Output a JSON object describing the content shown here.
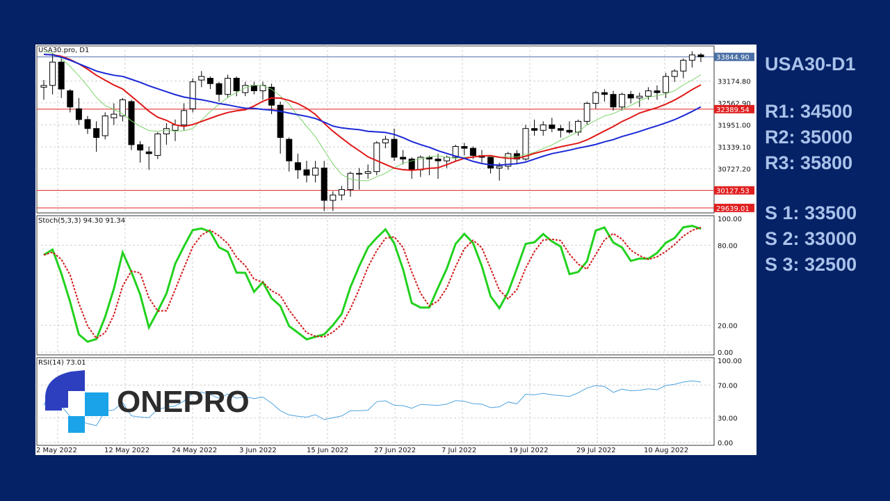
{
  "chart_data": {
    "type": "candlestick",
    "symbol_label": "USA30.pro, D1",
    "x_labels": [
      "2 May 2022",
      "12 May 2022",
      "24 May 2022",
      "3 Jun 2022",
      "15 Jun 2022",
      "27 Jun 2022",
      "7 Jul 2022",
      "19 Jul 2022",
      "29 Jul 2022",
      "10 Aug 2022"
    ],
    "price_panel": {
      "y_ticks": [
        "33174.80",
        "32562.90",
        "31951.00",
        "31339.10",
        "30727.20"
      ],
      "y_range": [
        29500,
        34150
      ],
      "horizontal_levels": [
        {
          "value": 33844.9,
          "label": "33844.90",
          "color": "#4a6fa5"
        },
        {
          "value": 32389.54,
          "label": "32389.54",
          "color": "#e02020"
        },
        {
          "value": 30127.53,
          "label": "30127.53",
          "color": "#e02020"
        },
        {
          "value": 29639.01,
          "label": "29639.01",
          "color": "#e02020"
        }
      ],
      "candles": [
        [
          33000,
          33200,
          32650,
          33050
        ],
        [
          33050,
          33950,
          32800,
          33700
        ],
        [
          33700,
          33850,
          32700,
          32950
        ],
        [
          32900,
          32950,
          32300,
          32450
        ],
        [
          32400,
          32700,
          31950,
          32100
        ],
        [
          32100,
          32200,
          31700,
          31850
        ],
        [
          31850,
          32050,
          31200,
          31600
        ],
        [
          31650,
          32300,
          31550,
          32200
        ],
        [
          32150,
          32550,
          31950,
          32250
        ],
        [
          32200,
          32700,
          32050,
          32650
        ],
        [
          32600,
          32650,
          31250,
          31400
        ],
        [
          31400,
          31500,
          30900,
          31250
        ],
        [
          31200,
          31350,
          30700,
          31150
        ],
        [
          31100,
          31750,
          31000,
          31700
        ],
        [
          31700,
          32000,
          31400,
          31850
        ],
        [
          31800,
          32100,
          31500,
          31950
        ],
        [
          31950,
          32550,
          31800,
          32350
        ],
        [
          32400,
          33250,
          32300,
          33150
        ],
        [
          33200,
          33450,
          33000,
          33300
        ],
        [
          33250,
          33300,
          32950,
          33100
        ],
        [
          33100,
          33150,
          32600,
          32800
        ],
        [
          32800,
          33350,
          32700,
          33250
        ],
        [
          33250,
          33300,
          32750,
          32900
        ],
        [
          32850,
          33150,
          32750,
          33050
        ],
        [
          33050,
          33150,
          32800,
          32900
        ],
        [
          32900,
          33150,
          32650,
          33050
        ],
        [
          33000,
          33100,
          32250,
          32500
        ],
        [
          32500,
          32600,
          31150,
          31600
        ],
        [
          31550,
          31600,
          30650,
          30950
        ],
        [
          30900,
          31150,
          30450,
          30700
        ],
        [
          30700,
          30950,
          30350,
          30550
        ],
        [
          30550,
          30950,
          30350,
          30750
        ],
        [
          30750,
          30950,
          29550,
          29850
        ],
        [
          29850,
          30100,
          29550,
          30000
        ],
        [
          30000,
          30250,
          29850,
          30150
        ],
        [
          30150,
          30650,
          29950,
          30600
        ],
        [
          30600,
          30750,
          30150,
          30600
        ],
        [
          30600,
          30850,
          30450,
          30650
        ],
        [
          30650,
          31500,
          30550,
          31450
        ],
        [
          31450,
          31650,
          31300,
          31550
        ],
        [
          31550,
          31850,
          30950,
          31050
        ],
        [
          31050,
          31250,
          30850,
          31000
        ],
        [
          31000,
          31050,
          30450,
          30700
        ],
        [
          30700,
          31100,
          30500,
          31050
        ],
        [
          31050,
          31100,
          30550,
          31000
        ],
        [
          31000,
          31150,
          30450,
          30950
        ],
        [
          30950,
          31100,
          30750,
          31050
        ],
        [
          31050,
          31400,
          30950,
          31350
        ],
        [
          31350,
          31450,
          31100,
          31300
        ],
        [
          31300,
          31350,
          31000,
          31100
        ],
        [
          31100,
          31250,
          30900,
          31050
        ],
        [
          31050,
          31100,
          30600,
          30750
        ],
        [
          30750,
          30900,
          30400,
          30800
        ],
        [
          30800,
          31200,
          30700,
          31150
        ],
        [
          31150,
          31250,
          30850,
          31000
        ],
        [
          31000,
          31950,
          30950,
          31850
        ],
        [
          31850,
          32100,
          31650,
          31800
        ],
        [
          31800,
          32050,
          31650,
          31950
        ],
        [
          31950,
          32150,
          31750,
          31850
        ],
        [
          31850,
          31950,
          31600,
          31800
        ],
        [
          31800,
          32050,
          31700,
          31750
        ],
        [
          31750,
          32100,
          31650,
          32050
        ],
        [
          32050,
          32600,
          31950,
          32550
        ],
        [
          32550,
          32900,
          32400,
          32850
        ],
        [
          32850,
          32950,
          32600,
          32800
        ],
        [
          32800,
          32900,
          32350,
          32450
        ],
        [
          32450,
          32850,
          32350,
          32800
        ],
        [
          32800,
          32900,
          32550,
          32700
        ],
        [
          32700,
          32850,
          32450,
          32750
        ],
        [
          32750,
          33000,
          32650,
          32900
        ],
        [
          32900,
          33050,
          32650,
          32850
        ],
        [
          32850,
          33400,
          32700,
          33300
        ],
        [
          33300,
          33500,
          33150,
          33450
        ],
        [
          33450,
          33800,
          33250,
          33750
        ],
        [
          33750,
          34000,
          33550,
          33900
        ],
        [
          33900,
          33950,
          33700,
          33850
        ]
      ]
    },
    "stoch_panel": {
      "label": "Stoch(5,3,3) 94.30 91.34",
      "y_ticks": [
        "100.00",
        "80.00",
        "20.00",
        "0.00"
      ],
      "y_range": [
        0,
        100
      ]
    },
    "rsi_panel": {
      "label": "RSI(14) 73.01",
      "y_ticks": [
        "100.00",
        "70.00",
        "30.00",
        "0.00"
      ],
      "y_range": [
        0,
        100
      ]
    }
  },
  "levels": {
    "title": "USA30-D1",
    "resistance": [
      "R1: 34500",
      "R2: 35000",
      "R3: 35800"
    ],
    "support": [
      "S 1: 33500",
      "S 2: 33000",
      "S 3: 32500"
    ]
  },
  "logo": {
    "text": "ONEPRO",
    "colors": {
      "blue_dark": "#2d3fbf",
      "blue_light": "#1aa3e8"
    }
  },
  "colors": {
    "background": "#062266",
    "ma_blue": "#1a28d6",
    "ma_red": "#e01818",
    "ma_green": "#7cd46a",
    "stoch_main": "#22d11e",
    "stoch_signal": "#d11a1a",
    "rsi": "#4da3e0"
  }
}
